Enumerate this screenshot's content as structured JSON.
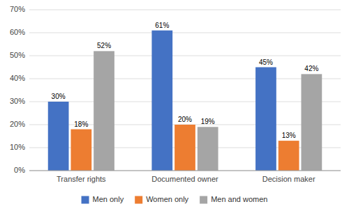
{
  "chart_data": {
    "type": "bar",
    "categories": [
      "Transfer rights",
      "Documented owner",
      "Decision maker"
    ],
    "series": [
      {
        "name": "Men only",
        "color": "#4472C4",
        "values": [
          30,
          61,
          45
        ],
        "value_labels": [
          "30%",
          "61%",
          "45%"
        ]
      },
      {
        "name": "Women only",
        "color": "#ED7D31",
        "values": [
          18,
          20,
          13
        ],
        "value_labels": [
          "18%",
          "20%",
          "13%"
        ]
      },
      {
        "name": "Men and women",
        "color": "#A5A5A5",
        "values": [
          52,
          19,
          42
        ],
        "value_labels": [
          "52%",
          "19%",
          "42%"
        ]
      }
    ],
    "ylim": [
      0,
      70
    ],
    "yticks": [
      {
        "value": 0,
        "label": "0%"
      },
      {
        "value": 10,
        "label": "10%"
      },
      {
        "value": 20,
        "label": "20%"
      },
      {
        "value": 30,
        "label": "30%"
      },
      {
        "value": 40,
        "label": "40%"
      },
      {
        "value": 50,
        "label": "50%"
      },
      {
        "value": 60,
        "label": "60%"
      },
      {
        "value": 70,
        "label": "70%"
      }
    ],
    "grid": true,
    "data_labels": true,
    "legend": "bottom"
  }
}
